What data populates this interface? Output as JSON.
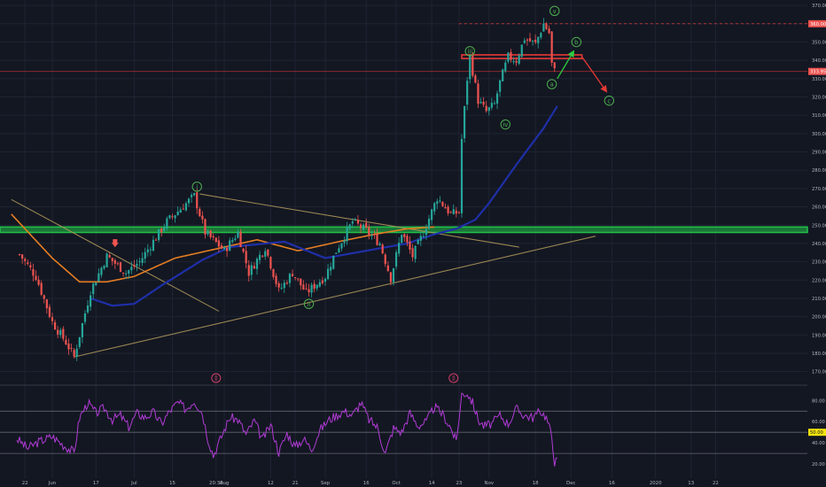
{
  "colors": {
    "background": "#131722",
    "grid": "#1f2433",
    "axis_text": "#b2b5be",
    "candle_up": "#26a69a",
    "candle_down": "#ef5350",
    "ma_fast": "#e67e22",
    "ma_slow": "#1f2fa8",
    "trendline": "#b39a5c",
    "support_zone": "#22c24a",
    "resistance": "#e53935",
    "rsi_line": "#b13bd6",
    "wave_label": "#4caf50",
    "earnings_marker": "#d0406a",
    "current_price_badge": "#ef5350",
    "rsi_mid_badge": "#f5e50c",
    "projection_up": "#2ecc40",
    "projection_down": "#e53935"
  },
  "chart_data": [
    {
      "type": "candlestick",
      "title": "",
      "y_axis": {
        "ticks": [
          170,
          180,
          190,
          200,
          210,
          220,
          230,
          240,
          250,
          260,
          270,
          280,
          290,
          300,
          310,
          320,
          330,
          340,
          350,
          360,
          370
        ],
        "range": [
          165,
          372
        ]
      },
      "x_axis": {
        "labels": [
          "22",
          "Jun",
          "17",
          "Jul",
          "15",
          "20:30",
          "Aug",
          "12",
          "21",
          "Sep",
          "16",
          "Oct",
          "14",
          "23",
          "Nov",
          "18",
          "Dec",
          "16",
          "2020",
          "13",
          "22"
        ],
        "label_days": [
          -10,
          0,
          16,
          30,
          44,
          60,
          63,
          80,
          89,
          100,
          115,
          126,
          139,
          149,
          160,
          177,
          190,
          205,
          221,
          234,
          243
        ]
      },
      "price_labels": {
        "high_line": "360.00",
        "current": "333.95",
        "rsi_mid": "50.00"
      },
      "key_points": [
        {
          "day": -12,
          "price": 234
        },
        {
          "day": -6,
          "price": 222
        },
        {
          "day": 0,
          "price": 197
        },
        {
          "day": 5,
          "price": 186
        },
        {
          "day": 8,
          "price": 178
        },
        {
          "day": 14,
          "price": 214
        },
        {
          "day": 20,
          "price": 233
        },
        {
          "day": 27,
          "price": 224
        },
        {
          "day": 32,
          "price": 230
        },
        {
          "day": 36,
          "price": 239
        },
        {
          "day": 42,
          "price": 252
        },
        {
          "day": 47,
          "price": 259
        },
        {
          "day": 52,
          "price": 266
        },
        {
          "day": 56,
          "price": 246
        },
        {
          "day": 63,
          "price": 236
        },
        {
          "day": 68,
          "price": 246
        },
        {
          "day": 72,
          "price": 224
        },
        {
          "day": 78,
          "price": 238
        },
        {
          "day": 83,
          "price": 214
        },
        {
          "day": 88,
          "price": 224
        },
        {
          "day": 93,
          "price": 213
        },
        {
          "day": 100,
          "price": 222
        },
        {
          "day": 104,
          "price": 236
        },
        {
          "day": 110,
          "price": 252
        },
        {
          "day": 115,
          "price": 247
        },
        {
          "day": 120,
          "price": 240
        },
        {
          "day": 124,
          "price": 221
        },
        {
          "day": 128,
          "price": 246
        },
        {
          "day": 132,
          "price": 233
        },
        {
          "day": 136,
          "price": 246
        },
        {
          "day": 141,
          "price": 265
        },
        {
          "day": 146,
          "price": 256
        },
        {
          "day": 149,
          "price": 257
        },
        {
          "day": 150,
          "price": 297
        },
        {
          "day": 152,
          "price": 330
        },
        {
          "day": 153,
          "price": 342
        },
        {
          "day": 156,
          "price": 318
        },
        {
          "day": 159,
          "price": 312
        },
        {
          "day": 162,
          "price": 316
        },
        {
          "day": 164,
          "price": 328
        },
        {
          "day": 167,
          "price": 342
        },
        {
          "day": 170,
          "price": 340
        },
        {
          "day": 173,
          "price": 352
        },
        {
          "day": 177,
          "price": 349
        },
        {
          "day": 180,
          "price": 360
        },
        {
          "day": 182,
          "price": 355
        },
        {
          "day": 183,
          "price": 338
        },
        {
          "day": 184,
          "price": 334
        }
      ],
      "ma_fast_points": [
        {
          "day": -15,
          "price": 256
        },
        {
          "day": 0,
          "price": 232
        },
        {
          "day": 10,
          "price": 219
        },
        {
          "day": 20,
          "price": 219
        },
        {
          "day": 30,
          "price": 222
        },
        {
          "day": 45,
          "price": 232
        },
        {
          "day": 60,
          "price": 237
        },
        {
          "day": 75,
          "price": 242
        },
        {
          "day": 90,
          "price": 236
        },
        {
          "day": 105,
          "price": 241
        },
        {
          "day": 118,
          "price": 245
        },
        {
          "day": 130,
          "price": 248
        },
        {
          "day": 140,
          "price": 249
        }
      ],
      "ma_slow_points": [
        {
          "day": 14,
          "price": 210
        },
        {
          "day": 22,
          "price": 206
        },
        {
          "day": 30,
          "price": 207
        },
        {
          "day": 40,
          "price": 217
        },
        {
          "day": 55,
          "price": 231
        },
        {
          "day": 65,
          "price": 238
        },
        {
          "day": 85,
          "price": 241
        },
        {
          "day": 100,
          "price": 232
        },
        {
          "day": 115,
          "price": 236
        },
        {
          "day": 130,
          "price": 240
        },
        {
          "day": 140,
          "price": 245
        },
        {
          "day": 148,
          "price": 248
        },
        {
          "day": 155,
          "price": 253
        },
        {
          "day": 160,
          "price": 262
        },
        {
          "day": 170,
          "price": 283
        },
        {
          "day": 180,
          "price": 303
        },
        {
          "day": 185,
          "price": 315
        }
      ],
      "trendlines": [
        {
          "points": [
            {
              "day": -15,
              "price": 264
            },
            {
              "day": 61,
              "price": 203
            }
          ]
        },
        {
          "points": [
            {
              "day": 54,
              "price": 267
            },
            {
              "day": 171,
              "price": 238
            }
          ]
        },
        {
          "points": [
            {
              "day": 8,
              "price": 178
            },
            {
              "day": 199,
              "price": 244
            }
          ]
        }
      ],
      "zones": [
        {
          "name": "support",
          "from": 246,
          "to": 249
        },
        {
          "name": "resistance",
          "from": 341,
          "to": 343,
          "day_start": 150,
          "day_end": 194
        },
        {
          "name": "current-price-line",
          "price": 333.95
        },
        {
          "name": "high-line",
          "price": 360.0
        }
      ],
      "wave_labels": [
        {
          "text": "i",
          "day": 53,
          "price": 271
        },
        {
          "text": "ii",
          "day": 94,
          "price": 207
        },
        {
          "text": "iii",
          "day": 153,
          "price": 345
        },
        {
          "text": "iv",
          "day": 166,
          "price": 305
        },
        {
          "text": "v",
          "day": 184,
          "price": 367
        },
        {
          "text": "a",
          "day": 183,
          "price": 327
        },
        {
          "text": "b",
          "day": 192,
          "price": 350
        },
        {
          "text": "c",
          "day": 204,
          "price": 318
        }
      ],
      "projection": {
        "up": [
          {
            "day": 185,
            "price": 330
          },
          {
            "day": 191,
            "price": 345
          }
        ],
        "down": [
          {
            "day": 194,
            "price": 342
          },
          {
            "day": 203,
            "price": 323
          }
        ]
      },
      "markers": [
        {
          "name": "sell-arrow",
          "day": 23,
          "price": 238
        }
      ]
    },
    {
      "type": "line",
      "title": "",
      "y_axis": {
        "ticks": [
          20,
          40,
          50,
          60,
          80
        ],
        "range": [
          10,
          92
        ]
      },
      "levels": [
        70,
        50,
        30
      ],
      "series": [
        {
          "points": [
            {
              "day": -13,
              "value": 44
            },
            {
              "day": -9,
              "value": 35
            },
            {
              "day": -5,
              "value": 41
            },
            {
              "day": 0,
              "value": 46
            },
            {
              "day": 4,
              "value": 38
            },
            {
              "day": 8,
              "value": 31
            },
            {
              "day": 10,
              "value": 64
            },
            {
              "day": 13,
              "value": 78
            },
            {
              "day": 16,
              "value": 68
            },
            {
              "day": 19,
              "value": 73
            },
            {
              "day": 22,
              "value": 62
            },
            {
              "day": 25,
              "value": 66
            },
            {
              "day": 28,
              "value": 55
            },
            {
              "day": 31,
              "value": 68
            },
            {
              "day": 34,
              "value": 64
            },
            {
              "day": 37,
              "value": 69
            },
            {
              "day": 40,
              "value": 58
            },
            {
              "day": 43,
              "value": 70
            },
            {
              "day": 46,
              "value": 78
            },
            {
              "day": 49,
              "value": 72
            },
            {
              "day": 52,
              "value": 80
            },
            {
              "day": 55,
              "value": 68
            },
            {
              "day": 57,
              "value": 44
            },
            {
              "day": 59,
              "value": 28
            },
            {
              "day": 62,
              "value": 46
            },
            {
              "day": 65,
              "value": 64
            },
            {
              "day": 68,
              "value": 62
            },
            {
              "day": 71,
              "value": 48
            },
            {
              "day": 74,
              "value": 61
            },
            {
              "day": 77,
              "value": 43
            },
            {
              "day": 80,
              "value": 57
            },
            {
              "day": 83,
              "value": 31
            },
            {
              "day": 86,
              "value": 49
            },
            {
              "day": 89,
              "value": 36
            },
            {
              "day": 92,
              "value": 44
            },
            {
              "day": 95,
              "value": 34
            },
            {
              "day": 98,
              "value": 52
            },
            {
              "day": 101,
              "value": 61
            },
            {
              "day": 104,
              "value": 66
            },
            {
              "day": 107,
              "value": 70
            },
            {
              "day": 110,
              "value": 66
            },
            {
              "day": 113,
              "value": 78
            },
            {
              "day": 116,
              "value": 62
            },
            {
              "day": 119,
              "value": 55
            },
            {
              "day": 122,
              "value": 30
            },
            {
              "day": 125,
              "value": 54
            },
            {
              "day": 128,
              "value": 50
            },
            {
              "day": 131,
              "value": 68
            },
            {
              "day": 134,
              "value": 56
            },
            {
              "day": 137,
              "value": 60
            },
            {
              "day": 140,
              "value": 74
            },
            {
              "day": 143,
              "value": 67
            },
            {
              "day": 146,
              "value": 54
            },
            {
              "day": 148,
              "value": 41
            },
            {
              "day": 150,
              "value": 86
            },
            {
              "day": 152,
              "value": 87
            },
            {
              "day": 154,
              "value": 78
            },
            {
              "day": 156,
              "value": 62
            },
            {
              "day": 158,
              "value": 56
            },
            {
              "day": 161,
              "value": 58
            },
            {
              "day": 164,
              "value": 66
            },
            {
              "day": 167,
              "value": 58
            },
            {
              "day": 170,
              "value": 72
            },
            {
              "day": 173,
              "value": 66
            },
            {
              "day": 176,
              "value": 64
            },
            {
              "day": 179,
              "value": 70
            },
            {
              "day": 181,
              "value": 64
            },
            {
              "day": 183,
              "value": 46
            },
            {
              "day": 184,
              "value": 22
            },
            {
              "day": 185,
              "value": 23
            }
          ]
        }
      ]
    }
  ]
}
